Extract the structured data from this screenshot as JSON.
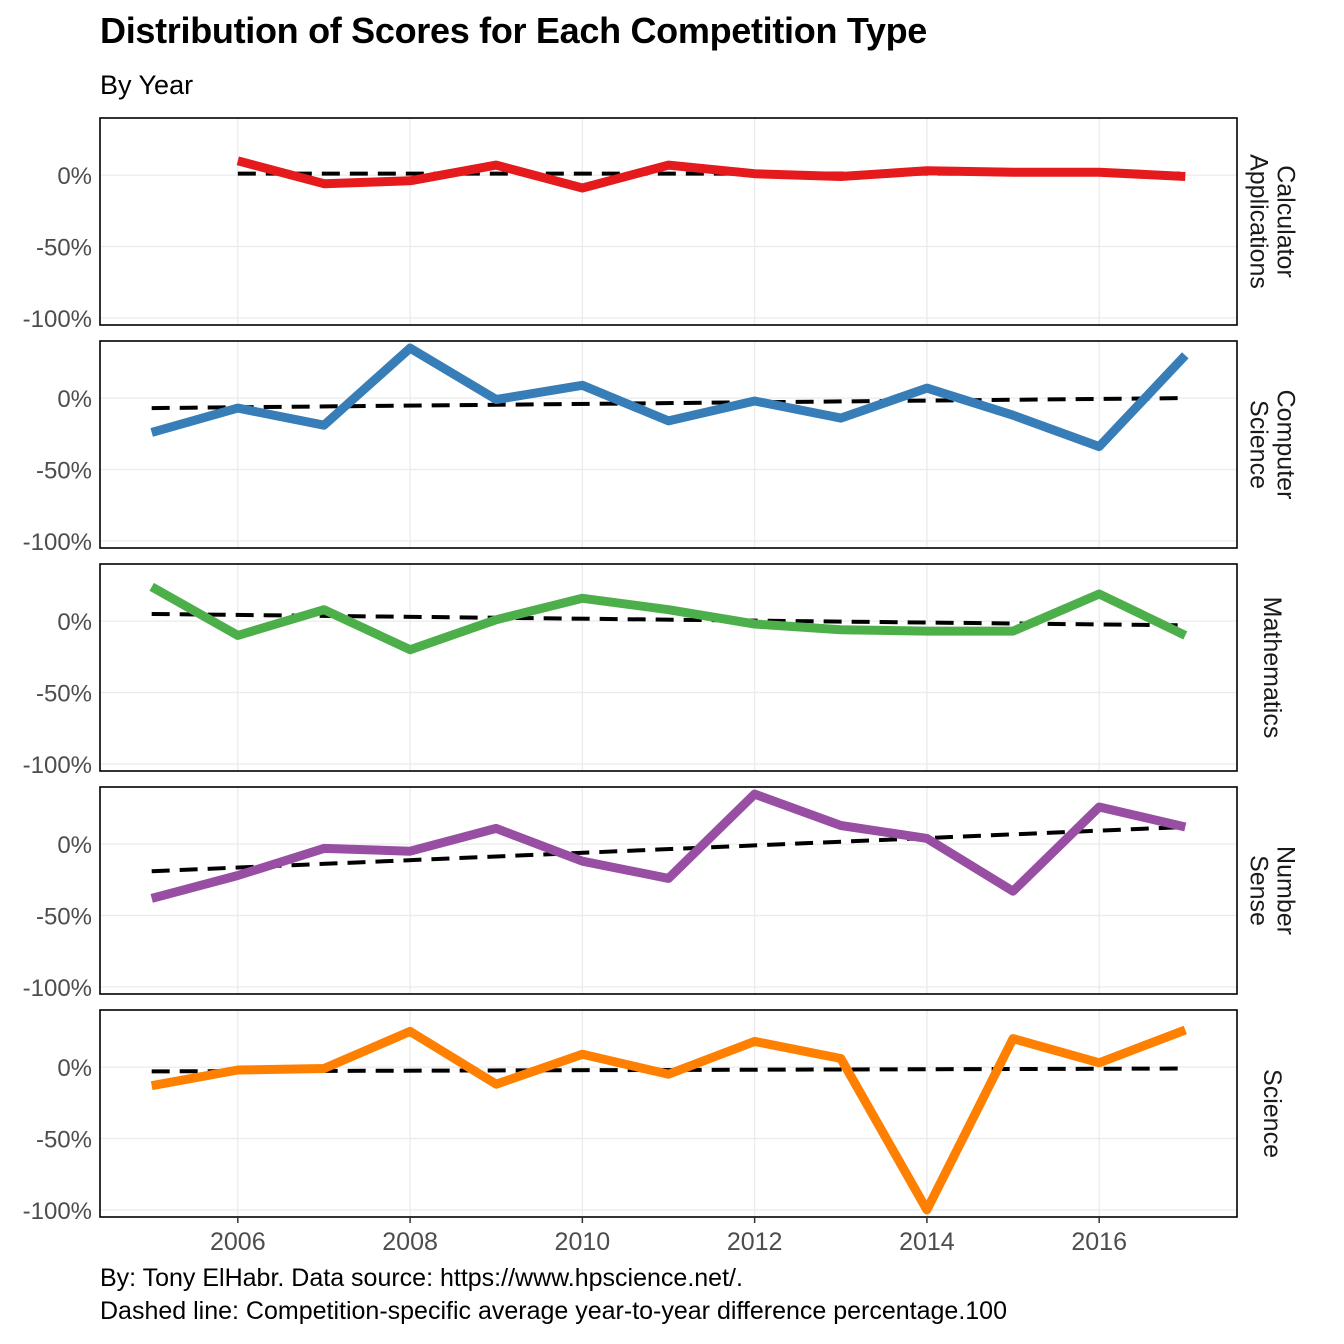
{
  "title": "Distribution of Scores for Each Competition Type",
  "subtitle": "By Year",
  "caption_line1": "By: Tony ElHabr. Data source: https://www.hpscience.net/.",
  "caption_line2": "Dashed line: Competition-specific average year-to-year difference percentage.100",
  "chart_data": {
    "type": "line",
    "facet_layout": "vertical",
    "strip_position": "right",
    "x_ticks": [
      2006,
      2008,
      2010,
      2012,
      2014,
      2016
    ],
    "x_tick_labels": [
      "2006",
      "2008",
      "2010",
      "2012",
      "2014",
      "2016"
    ],
    "xlim": [
      2004.4,
      2017.6
    ],
    "y_ticks": [
      0,
      -50,
      -100
    ],
    "y_tick_labels": [
      "0%",
      "-50%",
      "-100%"
    ],
    "ylim": [
      -105,
      40
    ],
    "grid": true,
    "trend_style": "dashed",
    "trend_color": "#000000",
    "panels": [
      {
        "label_lines": [
          "Calculator",
          "Applications"
        ],
        "color": "#e41a1c",
        "x": [
          2006,
          2007,
          2008,
          2009,
          2010,
          2011,
          2012,
          2013,
          2014,
          2015,
          2016,
          2017
        ],
        "values": [
          10,
          -6,
          -4,
          7,
          -9,
          7,
          1,
          -1,
          3,
          2,
          2,
          -1
        ],
        "trend": {
          "x": [
            2006,
            2017
          ],
          "y": [
            1,
            1
          ]
        }
      },
      {
        "label_lines": [
          "Computer",
          "Science"
        ],
        "color": "#377eb8",
        "x": [
          2005,
          2006,
          2007,
          2008,
          2009,
          2010,
          2011,
          2012,
          2013,
          2014,
          2015,
          2016,
          2017
        ],
        "values": [
          -24,
          -7,
          -19,
          35,
          -1,
          9,
          -16,
          -2,
          -14,
          7,
          -12,
          -34,
          30
        ],
        "trend": {
          "x": [
            2005,
            2017
          ],
          "y": [
            -7,
            0
          ]
        }
      },
      {
        "label_lines": [
          "Mathematics"
        ],
        "color": "#4daf4a",
        "x": [
          2005,
          2006,
          2007,
          2008,
          2009,
          2010,
          2011,
          2012,
          2013,
          2014,
          2015,
          2016,
          2017
        ],
        "values": [
          24,
          -10,
          8,
          -20,
          1,
          16,
          8,
          -2,
          -6,
          -7,
          -7,
          19,
          -10
        ],
        "trend": {
          "x": [
            2005,
            2017
          ],
          "y": [
            5,
            -3
          ]
        }
      },
      {
        "label_lines": [
          "Number",
          "Sense"
        ],
        "color": "#984ea3",
        "x": [
          2005,
          2006,
          2007,
          2008,
          2009,
          2010,
          2011,
          2012,
          2013,
          2014,
          2015,
          2016,
          2017
        ],
        "values": [
          -38,
          -22,
          -3,
          -5,
          11,
          -12,
          -24,
          35,
          13,
          4,
          -33,
          26,
          12
        ],
        "trend": {
          "x": [
            2005,
            2017
          ],
          "y": [
            -19,
            12
          ]
        }
      },
      {
        "label_lines": [
          "Science"
        ],
        "color": "#ff7f00",
        "x": [
          2005,
          2006,
          2007,
          2008,
          2009,
          2010,
          2011,
          2012,
          2013,
          2014,
          2015,
          2016,
          2017
        ],
        "values": [
          -13,
          -2,
          -1,
          25,
          -12,
          9,
          -5,
          18,
          6,
          -100,
          20,
          3,
          26
        ],
        "trend": {
          "x": [
            2005,
            2017
          ],
          "y": [
            -3,
            -1
          ]
        }
      }
    ]
  }
}
